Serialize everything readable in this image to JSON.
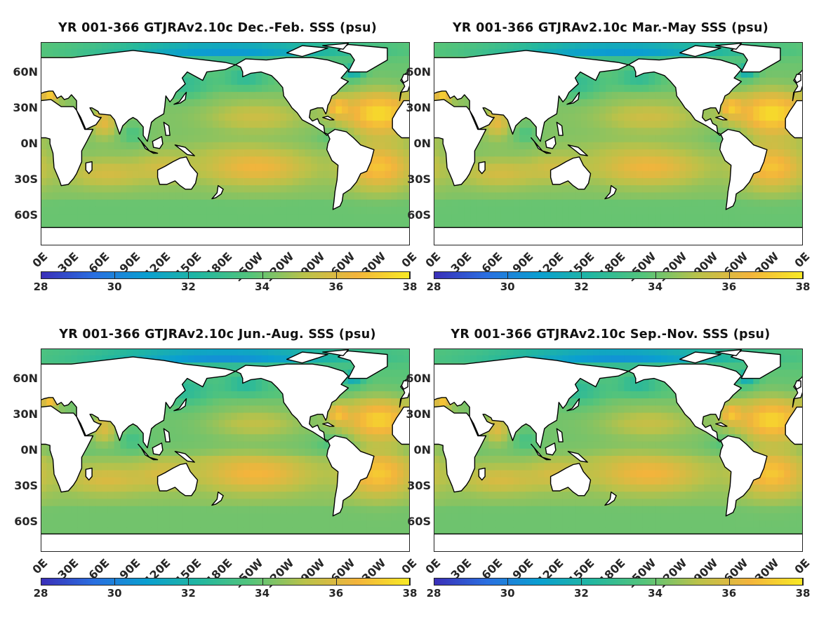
{
  "panels": [
    {
      "title": "YR 001-366 GTJRAv2.10c Dec.-Feb. SSS (psu)",
      "season": "DJF"
    },
    {
      "title": "YR 001-366 GTJRAv2.10c Mar.-May SSS (psu)",
      "season": "MAM"
    },
    {
      "title": "YR 001-366 GTJRAv2.10c Jun.-Aug. SSS (psu)",
      "season": "JJA"
    },
    {
      "title": "YR 001-366 GTJRAv2.10c Sep.-Nov. SSS (psu)",
      "season": "SON"
    }
  ],
  "lat_labels": [
    "60N",
    "30N",
    "0N",
    "30S",
    "60S"
  ],
  "lon_labels": [
    "0E",
    "30E",
    "60E",
    "90E",
    "120E",
    "150E",
    "180E",
    "150W",
    "120W",
    "90W",
    "60W",
    "30W",
    "0E"
  ],
  "colorbar": {
    "min": 28,
    "max": 38,
    "tick_labels": [
      "28",
      "30",
      "32",
      "34",
      "36",
      "38"
    ],
    "colors": [
      "#3a2fb8",
      "#2a6fe0",
      "#0a9fd0",
      "#22b7a0",
      "#55c47a",
      "#b9c24a",
      "#f3b43c",
      "#f8e925"
    ]
  },
  "map_colors": {
    "land": "#ffffff",
    "coast": "#000000"
  }
}
